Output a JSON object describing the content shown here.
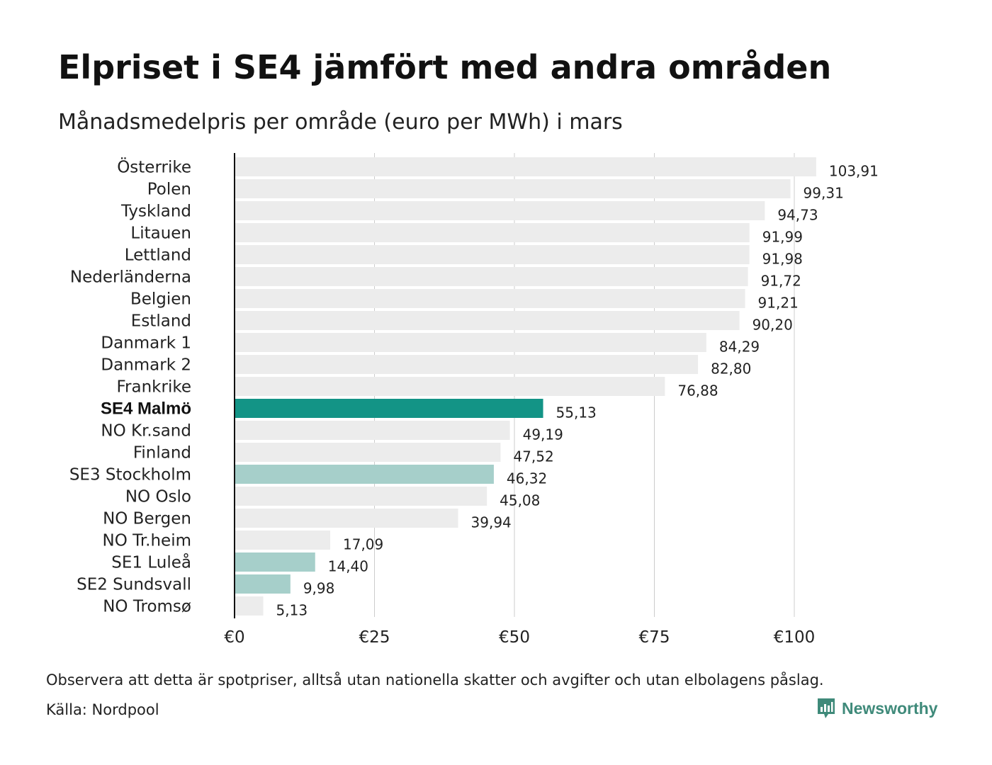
{
  "title": "Elpriset i SE4 jämfört med andra områden",
  "subtitle": "Månadsmedelpris per område (euro per MWh) i mars",
  "note": "Observera att detta är spotpriser, alltså utan nationella skatter och avgifter och utan elbolagens påslag.",
  "source": "Källa: Nordpool",
  "brand": {
    "name": "Newsworthy",
    "icon": "newsworthy-logo-icon",
    "color": "#3f8a7a"
  },
  "colors": {
    "default": "#ececec",
    "highlight": "#139486",
    "swedish": "#a6cfca",
    "axis": "#111111",
    "grid": "#cccccc"
  },
  "chart_data": {
    "type": "bar",
    "orientation": "horizontal",
    "title": "Elpriset i SE4 jämfört med andra områden",
    "subtitle": "Månadsmedelpris per område (euro per MWh) i mars",
    "categories": [
      "Österrike",
      "Polen",
      "Tyskland",
      "Litauen",
      "Lettland",
      "Nederländerna",
      "Belgien",
      "Estland",
      "Danmark 1",
      "Danmark 2",
      "Frankrike",
      "SE4 Malmö",
      "NO Kr.sand",
      "Finland",
      "SE3 Stockholm",
      "NO Oslo",
      "NO Bergen",
      "NO Tr.heim",
      "SE1 Luleå",
      "SE2 Sundsvall",
      "NO Tromsø"
    ],
    "values": [
      103.91,
      99.31,
      94.73,
      91.99,
      91.98,
      91.72,
      91.21,
      90.2,
      84.29,
      82.8,
      76.88,
      55.13,
      49.19,
      47.52,
      46.32,
      45.08,
      39.94,
      17.09,
      14.4,
      9.98,
      5.13
    ],
    "value_labels": [
      "103,91",
      "99,31",
      "94,73",
      "91,99",
      "91,98",
      "91,72",
      "91,21",
      "90,20",
      "84,29",
      "82,80",
      "76,88",
      "55,13",
      "49,19",
      "47,52",
      "46,32",
      "45,08",
      "39,94",
      "17,09",
      "14,40",
      "9,98",
      "5,13"
    ],
    "highlight": [
      "default",
      "default",
      "default",
      "default",
      "default",
      "default",
      "default",
      "default",
      "default",
      "default",
      "default",
      "highlight",
      "default",
      "default",
      "swedish",
      "default",
      "default",
      "default",
      "swedish",
      "swedish",
      "default"
    ],
    "xlim": [
      0,
      105
    ],
    "xticks": [
      0,
      25,
      50,
      75,
      100
    ],
    "xtick_labels": [
      "€0",
      "€25",
      "€50",
      "€75",
      "€100"
    ],
    "xlabel": "",
    "ylabel": "",
    "grid": "vertical"
  }
}
